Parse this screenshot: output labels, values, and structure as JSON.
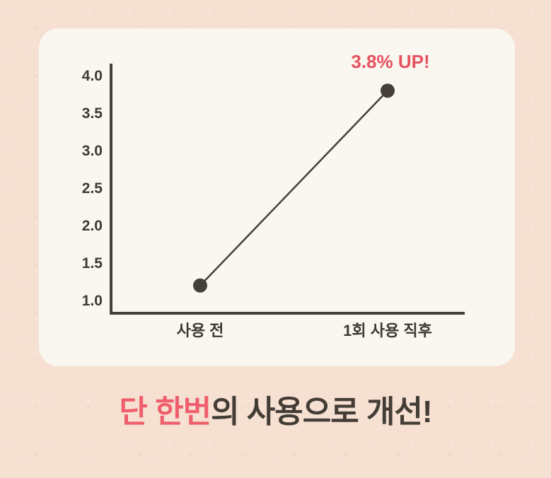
{
  "background_color": "#f5e0d2",
  "card": {
    "background_color": "#faf6f0"
  },
  "chart_data": {
    "type": "line",
    "categories": [
      "사용 전",
      "1회 사용 직후"
    ],
    "values": [
      1.2,
      3.8
    ],
    "yticks": [
      1.0,
      1.5,
      2.0,
      2.5,
      3.0,
      3.5,
      4.0
    ],
    "ytick_labels": [
      "1.0",
      "1.5",
      "2.0",
      "2.5",
      "3.0",
      "3.5",
      "4.0"
    ],
    "ylim": [
      1.0,
      4.0
    ],
    "title": "",
    "xlabel": "",
    "ylabel": "",
    "grid": false,
    "legend": false,
    "annotation": "3.8% UP!",
    "annotation_color": "#e6525f",
    "axis_color": "#454039",
    "line_color": "#454039",
    "point_color": "#454039",
    "tick_label_color": "#3e3933"
  },
  "caption": {
    "highlight": "단 한번",
    "rest": "의 사용으로 개선!",
    "highlight_color": "#ef5e6c",
    "text_color": "#433d36"
  }
}
